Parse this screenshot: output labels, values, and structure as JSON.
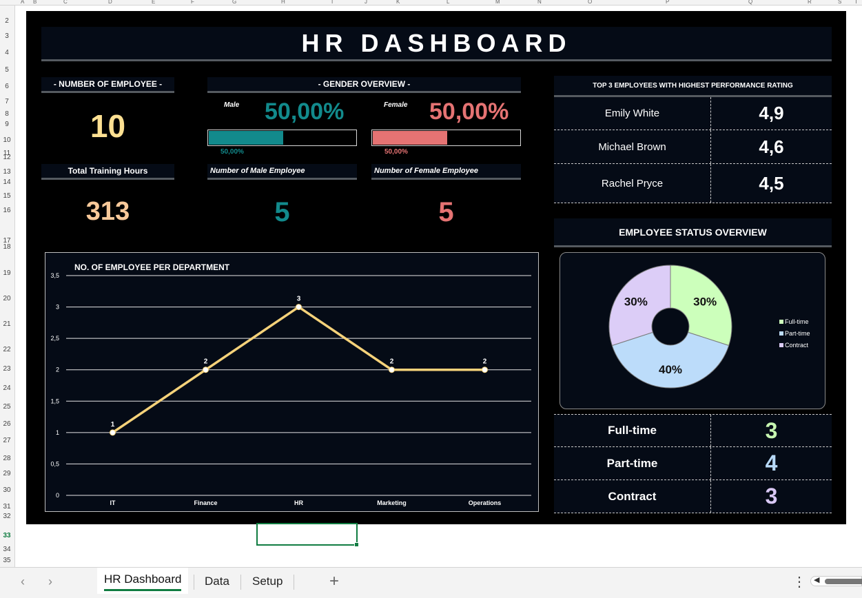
{
  "sheet": {
    "columns": [
      "A",
      "B",
      "C",
      "D",
      "E",
      "F",
      "G",
      "H",
      "I",
      "J",
      "K",
      "L",
      "M",
      "N",
      "O",
      "P",
      "Q",
      "R",
      "S",
      "T"
    ],
    "rows": [
      "2",
      "3",
      "4",
      "5",
      "6",
      "7",
      "8",
      "9",
      "10",
      "11",
      "12",
      "13",
      "14",
      "15",
      "16",
      "17",
      "18",
      "19",
      "20",
      "21",
      "22",
      "23",
      "24",
      "25",
      "26",
      "27",
      "28",
      "29",
      "30",
      "31",
      "32",
      "33",
      "34",
      "35"
    ],
    "selected_row": "33",
    "tabs": [
      {
        "label": "HR Dashboard",
        "active": true
      },
      {
        "label": "Data",
        "active": false
      },
      {
        "label": "Setup",
        "active": false
      }
    ],
    "add_sheet": "+",
    "nav_prev": "‹",
    "nav_next": "›",
    "more": "⋮"
  },
  "dashboard": {
    "title": "HR DASHBOARD",
    "num_employee": {
      "label": "- NUMBER OF EMPLOYEE -",
      "value": "10",
      "color": "#fde092"
    },
    "training": {
      "label": "Total Training Hours",
      "value": "313",
      "color": "#f8c99a"
    },
    "gender": {
      "label": "- GENDER OVERVIEW -",
      "male": {
        "tag": "Male",
        "pct": "50,00%",
        "bar_label": "50,00%",
        "fraction": 0.5,
        "color": "#128a8c",
        "count_label": "Number of Male Employee",
        "count": "5"
      },
      "female": {
        "tag": "Female",
        "pct": "50,00%",
        "bar_label": "50,00%",
        "fraction": 0.5,
        "color": "#e57373",
        "count_label": "Number of Female Employee",
        "count": "5"
      }
    },
    "top3": {
      "label": "TOP 3 EMPLOYEES WITH HIGHEST PERFORMANCE RATING",
      "rows": [
        {
          "name": "Emily White",
          "rating": "4,9"
        },
        {
          "name": "Michael Brown",
          "rating": "4,6"
        },
        {
          "name": "Rachel Pryce",
          "rating": "4,5"
        }
      ]
    },
    "status": {
      "label": "EMPLOYEE STATUS OVERVIEW",
      "rows": [
        {
          "name": "Full-time",
          "value": "3",
          "color": "#c6f5b0"
        },
        {
          "name": "Part-time",
          "value": "4",
          "color": "#b7d9f7"
        },
        {
          "name": "Contract",
          "value": "3",
          "color": "#d9c8f5"
        }
      ]
    }
  },
  "chart_data": [
    {
      "type": "line",
      "title": "NO. OF EMPLOYEE PER DEPARTMENT",
      "categories": [
        "IT",
        "Finance",
        "HR",
        "Marketing",
        "Operations"
      ],
      "values": [
        1,
        2,
        3,
        2,
        2
      ],
      "ylim": [
        0,
        3.5
      ],
      "yticks": [
        "0",
        "0,5",
        "1",
        "1,5",
        "2",
        "2,5",
        "3",
        "3,5"
      ],
      "grid": true,
      "color": "#f5d27a"
    },
    {
      "type": "pie",
      "labels": [
        "Full-time",
        "Part-time",
        "Contract"
      ],
      "values": [
        30,
        40,
        30
      ],
      "value_labels": [
        "30%",
        "40%",
        "30%"
      ],
      "colors": [
        "#ccffbb",
        "#bcdcfa",
        "#dccdf7"
      ],
      "legend": "right"
    }
  ]
}
